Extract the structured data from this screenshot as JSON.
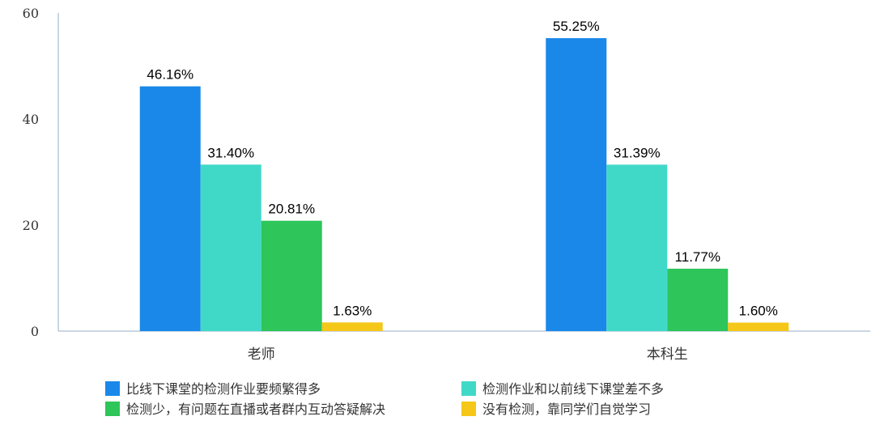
{
  "chart_data": {
    "type": "bar",
    "categories": [
      "老师",
      "本科生"
    ],
    "series": [
      {
        "name": "比线下课堂的检测作业要频繁得多",
        "values": [
          46.16,
          55.25
        ],
        "labels": [
          "46.16%",
          "55.25%"
        ],
        "color": "#1a88e8"
      },
      {
        "name": "检测作业和以前线下课堂差不多",
        "values": [
          31.4,
          31.39
        ],
        "labels": [
          "31.40%",
          "31.39%"
        ],
        "color": "#40d9c8"
      },
      {
        "name": "检测少，有问题在直播或者群内互动答疑解决",
        "values": [
          20.81,
          11.77
        ],
        "labels": [
          "20.81%",
          "11.77%"
        ],
        "color": "#2ec55a"
      },
      {
        "name": "没有检测，靠同学们自觉学习",
        "values": [
          1.63,
          1.6
        ],
        "labels": [
          "1.63%",
          "1.60%"
        ],
        "color": "#f5c718"
      }
    ],
    "yticks": [
      "0",
      "20",
      "40",
      "60"
    ],
    "ylim": [
      0,
      60
    ],
    "grid": false,
    "legend_position": "bottom"
  }
}
